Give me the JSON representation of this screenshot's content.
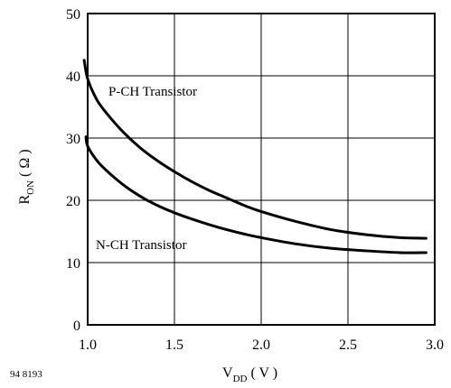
{
  "figure_id": "94 8193",
  "chart_data": {
    "type": "line",
    "xlabel": {
      "main": "V",
      "sub": "DD",
      "unit": "( V )"
    },
    "ylabel": {
      "main": "R",
      "sub": "ON",
      "unit": "( Ω )"
    },
    "xlim": [
      1.0,
      3.0
    ],
    "ylim": [
      0,
      50
    ],
    "x_ticks": [
      1.0,
      1.5,
      2.0,
      2.5,
      3.0
    ],
    "x_tick_labels": [
      "1.0",
      "1.5",
      "2.0",
      "2.5",
      "3.0"
    ],
    "y_ticks": [
      0,
      10,
      20,
      30,
      40,
      50
    ],
    "y_tick_labels": [
      "0",
      "10",
      "20",
      "30",
      "40",
      "50"
    ],
    "grid": true,
    "series": [
      {
        "name": "P-CH Transistor",
        "color": "#000000",
        "x": [
          0.98,
          1.0,
          1.05,
          1.1,
          1.2,
          1.3,
          1.4,
          1.5,
          1.6,
          1.7,
          1.8,
          1.9,
          2.0,
          2.2,
          2.4,
          2.6,
          2.8,
          2.95
        ],
        "y": [
          42.5,
          39.5,
          36.3,
          34.3,
          31.1,
          28.5,
          26.4,
          24.6,
          23.0,
          21.6,
          20.4,
          19.2,
          18.2,
          16.6,
          15.3,
          14.5,
          14.0,
          13.9
        ]
      },
      {
        "name": "N-CH Transistor",
        "color": "#000000",
        "x": [
          0.99,
          1.0,
          1.05,
          1.1,
          1.2,
          1.3,
          1.4,
          1.5,
          1.6,
          1.7,
          1.8,
          1.9,
          2.0,
          2.2,
          2.4,
          2.6,
          2.8,
          2.95
        ],
        "y": [
          30.2,
          28.7,
          26.5,
          25.0,
          22.6,
          20.7,
          19.2,
          18.0,
          17.0,
          16.1,
          15.3,
          14.6,
          14.0,
          13.0,
          12.3,
          11.9,
          11.6,
          11.6
        ]
      }
    ]
  }
}
